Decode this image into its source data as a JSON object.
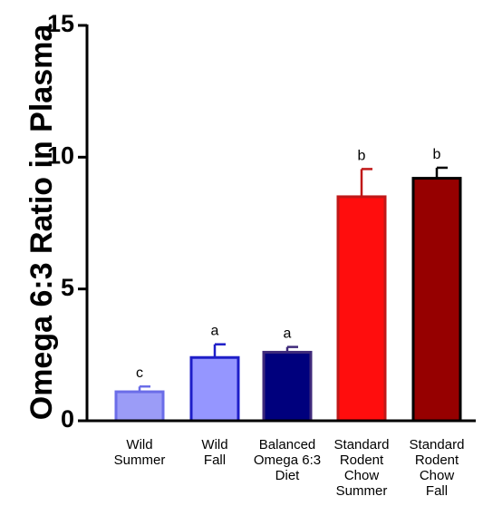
{
  "chart_data": {
    "type": "bar",
    "title": "",
    "xlabel": "",
    "ylabel": "Omega 6:3 Ratio in Plasma",
    "ylim": [
      0,
      15
    ],
    "yticks": [
      0,
      5,
      10,
      15
    ],
    "grid": false,
    "categories": [
      [
        "Wild",
        "Summer"
      ],
      [
        "Wild",
        "Fall"
      ],
      [
        "Balanced",
        "Omega 6:3",
        "Diet"
      ],
      [
        "Standard",
        "Rodent",
        "Chow",
        "Summer"
      ],
      [
        "Standard",
        "Rodent",
        "Chow",
        "Fall"
      ]
    ],
    "values": [
      1.1,
      2.4,
      2.6,
      8.5,
      9.2
    ],
    "errors": [
      0.2,
      0.5,
      0.2,
      1.05,
      0.4
    ],
    "significance_labels": [
      "c",
      "a",
      "a",
      "b",
      "b"
    ],
    "colors": {
      "fills": [
        "#9b9cf7",
        "#9596ff",
        "#00007d",
        "#ff0d0d",
        "#960000"
      ],
      "edges": [
        "#6b6de8",
        "#1e1ec8",
        "#3f2a7a",
        "#c01818",
        "#000000"
      ]
    }
  }
}
